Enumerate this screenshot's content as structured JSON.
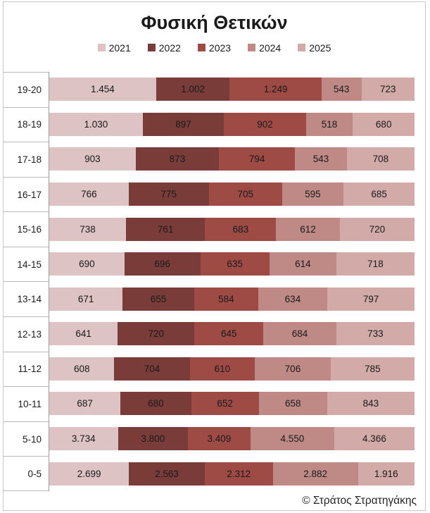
{
  "title": "Φυσική Θετικών",
  "footer_credit": "© Στράτος Στρατηγάκης",
  "colors": {
    "frame_border": "#c9c9c9",
    "axis_line": "#9c9c9c",
    "tick_line": "#b9b9b9",
    "label_text": "#1a1a1a"
  },
  "chart_data": {
    "type": "bar",
    "variant": "100%-stacked-horizontal",
    "title": "Φυσική Θετικών",
    "xlabel": "",
    "ylabel": "",
    "grid": false,
    "legend_position": "top",
    "categories": [
      "19-20",
      "18-19",
      "17-18",
      "16-17",
      "15-16",
      "14-15",
      "13-14",
      "12-13",
      "11-12",
      "10-11",
      "5-10",
      "0-5"
    ],
    "series": [
      {
        "name": "2021",
        "color": "#ddc3c3",
        "values": [
          1454,
          1030,
          903,
          766,
          738,
          690,
          671,
          641,
          608,
          687,
          3734,
          2699
        ],
        "labels": [
          "1.454",
          "1.030",
          "903",
          "766",
          "738",
          "690",
          "671",
          "641",
          "608",
          "687",
          "3.734",
          "2.699"
        ]
      },
      {
        "name": "2022",
        "color": "#7a3c39",
        "values": [
          1002,
          897,
          873,
          775,
          761,
          696,
          655,
          720,
          704,
          680,
          3800,
          2563
        ],
        "labels": [
          "1.002",
          "897",
          "873",
          "775",
          "761",
          "696",
          "655",
          "720",
          "704",
          "680",
          "3.800",
          "2.563"
        ]
      },
      {
        "name": "2023",
        "color": "#9e4b46",
        "values": [
          1249,
          902,
          794,
          705,
          683,
          635,
          584,
          645,
          610,
          652,
          3409,
          2312
        ],
        "labels": [
          "1.249",
          "902",
          "794",
          "705",
          "683",
          "635",
          "584",
          "645",
          "610",
          "652",
          "3.409",
          "2.312"
        ]
      },
      {
        "name": "2024",
        "color": "#bf8a85",
        "values": [
          543,
          518,
          543,
          595,
          612,
          614,
          634,
          684,
          706,
          658,
          4550,
          2882
        ],
        "labels": [
          "543",
          "518",
          "543",
          "595",
          "612",
          "614",
          "634",
          "684",
          "706",
          "658",
          "4.550",
          "2.882"
        ]
      },
      {
        "name": "2025",
        "color": "#d2aaa7",
        "values": [
          723,
          680,
          708,
          685,
          720,
          718,
          797,
          733,
          785,
          843,
          4366,
          1916
        ],
        "labels": [
          "723",
          "680",
          "708",
          "685",
          "720",
          "718",
          "797",
          "733",
          "785",
          "843",
          "4.366",
          "1.916"
        ]
      }
    ]
  }
}
